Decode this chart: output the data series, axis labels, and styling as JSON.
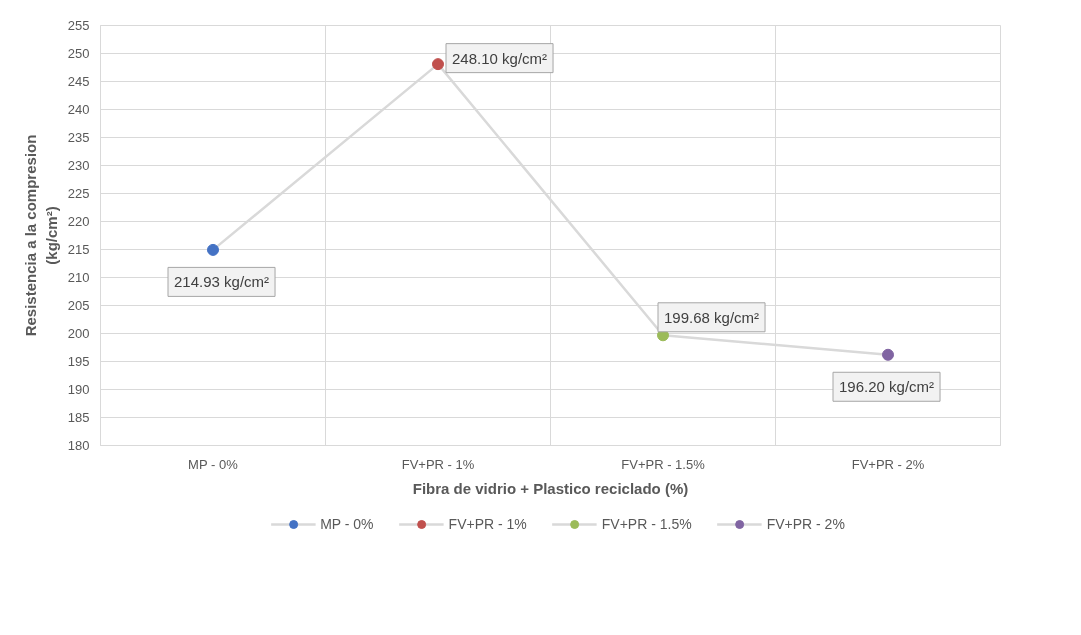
{
  "chart_data": {
    "type": "line",
    "xlabel": "Fibra de vidrio + Plastico reciclado (%)",
    "ylabel": "Resistencia a la compresion\n(kg/cm²)",
    "categories": [
      "MP - 0%",
      "FV+PR - 1%",
      "FV+PR - 1.5%",
      "FV+PR - 2%"
    ],
    "ylim": [
      180,
      255
    ],
    "yticks": [
      180,
      185,
      190,
      195,
      200,
      205,
      210,
      215,
      220,
      225,
      230,
      235,
      240,
      245,
      250,
      255
    ],
    "grid": true,
    "legend": "bottom",
    "series": [
      {
        "color": "#d9d9d9",
        "values": [
          214.93,
          248.1,
          199.68,
          196.2
        ],
        "marker": "none"
      },
      {
        "name": "MP - 0%",
        "color": "#4472c4",
        "values": [
          214.93,
          null,
          null,
          null
        ],
        "marker": "circle",
        "value_labels": [
          "214.93 kg/cm²",
          null,
          null,
          null
        ]
      },
      {
        "name": "FV+PR - 1%",
        "color": "#c0504d",
        "values": [
          null,
          248.1,
          null,
          null
        ],
        "marker": "circle",
        "value_labels": [
          null,
          "248.10 kg/cm²",
          null,
          null
        ]
      },
      {
        "name": "FV+PR - 1.5%",
        "color": "#9bbb59",
        "values": [
          null,
          null,
          199.68,
          null
        ],
        "marker": "circle",
        "value_labels": [
          null,
          null,
          "199.68 kg/cm²",
          null
        ]
      },
      {
        "name": "FV+PR - 2%",
        "color": "#8064a2",
        "values": [
          null,
          null,
          null,
          196.2
        ],
        "marker": "circle",
        "value_labels": [
          null,
          null,
          null,
          "196.20 kg/cm²"
        ]
      }
    ]
  }
}
